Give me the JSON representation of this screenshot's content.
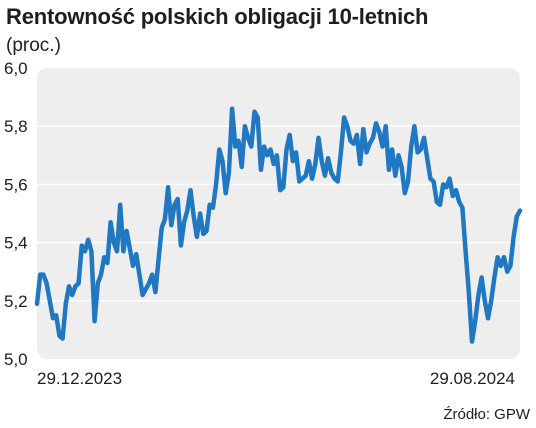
{
  "title": "Rentowność polskich obligacji 10-letnich",
  "subtitle": "(proc.)",
  "source": "Źródło: GPW",
  "chart_data": {
    "type": "line",
    "title": "Rentowność polskich obligacji 10-letnich",
    "ylabel": "(proc.)",
    "xlabel": "",
    "ylim": [
      5.0,
      6.0
    ],
    "yticks": [
      5.0,
      5.2,
      5.4,
      5.6,
      5.8,
      6.0
    ],
    "ytick_labels": [
      "5,0",
      "5,2",
      "5,4",
      "5,6",
      "5,8",
      "6,0"
    ],
    "x_labels": [
      "29.12.2023",
      "29.08.2024"
    ],
    "grid": true,
    "background": "#eeeeee",
    "line_color": "#1f78c1",
    "series": [
      {
        "values": [
          5.19,
          5.29,
          5.29,
          5.26,
          5.2,
          5.14,
          5.15,
          5.08,
          5.07,
          5.19,
          5.25,
          5.22,
          5.25,
          5.26,
          5.39,
          5.37,
          5.41,
          5.37,
          5.13,
          5.26,
          5.29,
          5.35,
          5.33,
          5.47,
          5.4,
          5.37,
          5.53,
          5.37,
          5.44,
          5.38,
          5.32,
          5.36,
          5.29,
          5.22,
          5.24,
          5.26,
          5.29,
          5.23,
          5.34,
          5.45,
          5.48,
          5.59,
          5.46,
          5.53,
          5.55,
          5.39,
          5.47,
          5.51,
          5.58,
          5.49,
          5.42,
          5.5,
          5.43,
          5.44,
          5.53,
          5.52,
          5.6,
          5.72,
          5.68,
          5.57,
          5.64,
          5.86,
          5.73,
          5.75,
          5.66,
          5.8,
          5.76,
          5.73,
          5.85,
          5.83,
          5.65,
          5.73,
          5.7,
          5.72,
          5.67,
          5.7,
          5.58,
          5.59,
          5.72,
          5.77,
          5.68,
          5.71,
          5.61,
          5.62,
          5.63,
          5.68,
          5.62,
          5.67,
          5.76,
          5.68,
          5.63,
          5.69,
          5.64,
          5.62,
          5.61,
          5.71,
          5.83,
          5.8,
          5.75,
          5.74,
          5.77,
          5.67,
          5.79,
          5.71,
          5.74,
          5.76,
          5.81,
          5.78,
          5.73,
          5.8,
          5.65,
          5.72,
          5.63,
          5.7,
          5.66,
          5.57,
          5.61,
          5.73,
          5.8,
          5.71,
          5.72,
          5.76,
          5.69,
          5.62,
          5.61,
          5.54,
          5.53,
          5.6,
          5.59,
          5.62,
          5.56,
          5.58,
          5.54,
          5.52,
          5.37,
          5.23,
          5.06,
          5.13,
          5.22,
          5.28,
          5.2,
          5.14,
          5.2,
          5.28,
          5.35,
          5.32,
          5.35,
          5.3,
          5.32,
          5.42,
          5.49,
          5.51
        ]
      }
    ]
  }
}
